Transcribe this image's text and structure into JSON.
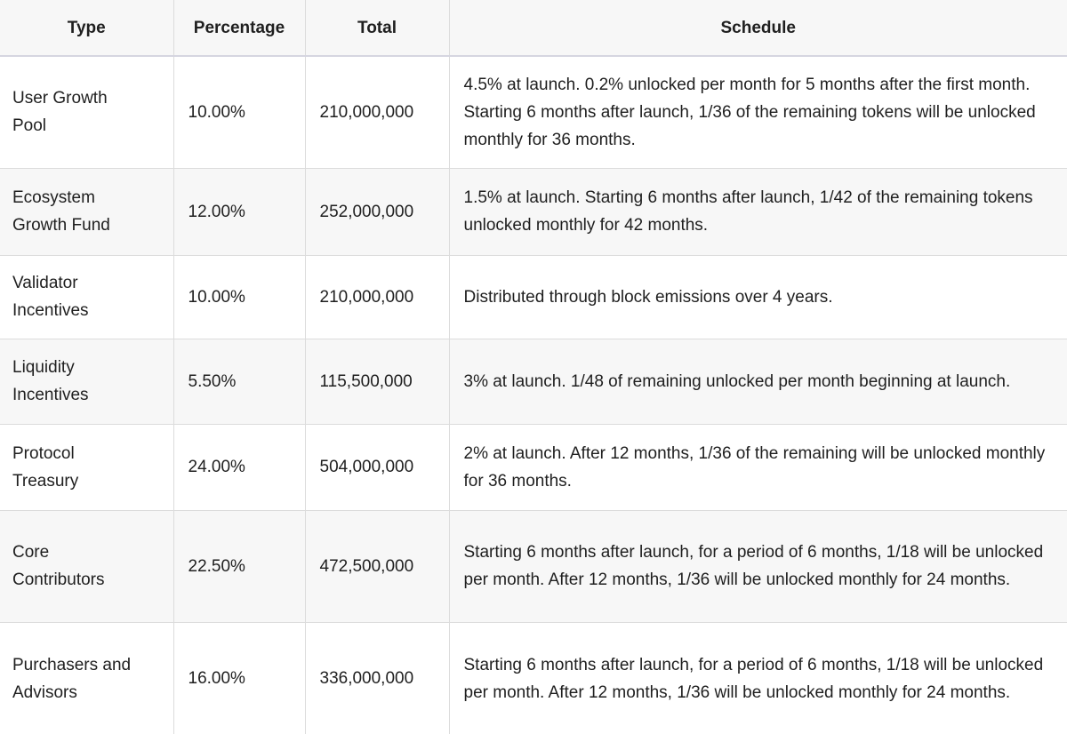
{
  "table": {
    "header": [
      "Type",
      "Percentage",
      "Total",
      "Schedule"
    ],
    "rows": [
      [
        [
          "User Growth",
          "Pool"
        ],
        "10.00%",
        "210,000,000",
        "4.5% at launch. 0.2% unlocked per month for 5 months after the first month. Starting 6 months after launch, 1/36 of the remaining tokens will be unlocked monthly for 36 months."
      ],
      [
        [
          "Ecosystem",
          "Growth Fund"
        ],
        "12.00%",
        "252,000,000",
        "1.5% at launch. Starting 6 months after launch, 1/42 of the remaining tokens unlocked monthly for 42 months."
      ],
      [
        [
          "Validator",
          "Incentives"
        ],
        "10.00%",
        "210,000,000",
        "Distributed through block emissions over 4 years."
      ],
      [
        [
          "Liquidity",
          "Incentives"
        ],
        "5.50%",
        "115,500,000",
        "3% at launch. 1/48 of remaining unlocked per month beginning at launch."
      ],
      [
        [
          "Protocol",
          "Treasury"
        ],
        "24.00%",
        "504,000,000",
        "2% at launch. After 12 months, 1/36 of the remaining will be unlocked monthly for 36 months."
      ],
      [
        [
          "Core",
          "Contributors"
        ],
        "22.50%",
        "472,500,000",
        "Starting 6 months after launch, for a period of 6 months, 1/18 will be unlocked per month. After 12 months, 1/36 will be unlocked monthly for 24 months."
      ],
      [
        [
          "Purchasers and",
          "Advisors"
        ],
        "16.00%",
        "336,000,000",
        "Starting 6 months after launch, for a period of 6 months, 1/18 will be unlocked per month. After 12 months, 1/36 will be unlocked monthly for 24 months."
      ]
    ]
  }
}
